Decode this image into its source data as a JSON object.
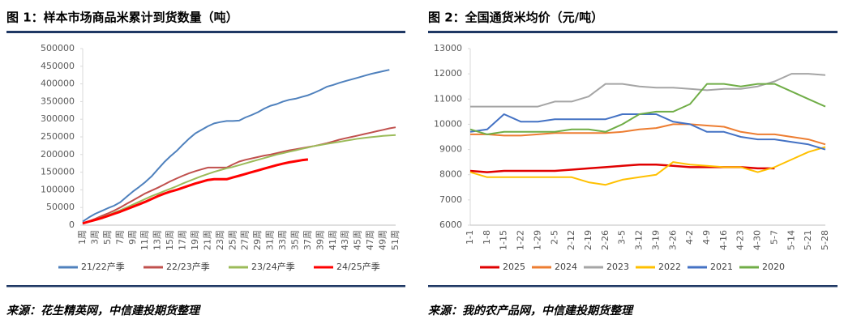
{
  "chart_data": [
    {
      "type": "line",
      "title": "图 1：样本市场商品米累计到货数量（吨）",
      "source": "来源：花生精英网，中信建投期货整理",
      "categories": [
        "1周",
        null,
        "3周",
        null,
        "5周",
        null,
        "7周",
        null,
        "9周",
        null,
        "11周",
        null,
        "13周",
        null,
        "15周",
        null,
        "17周",
        null,
        "19周",
        null,
        "21周",
        null,
        "23周",
        null,
        "25周",
        null,
        "27周",
        null,
        "29周",
        null,
        "31周",
        null,
        "33周",
        null,
        "35周",
        null,
        "37周",
        null,
        "39周",
        null,
        "41周",
        null,
        "43周",
        null,
        "45周",
        null,
        "47周",
        null,
        "49周",
        null,
        "51周"
      ],
      "ylim": [
        0,
        500000
      ],
      "yticks": [
        0,
        50000,
        100000,
        150000,
        200000,
        250000,
        300000,
        350000,
        400000,
        450000,
        500000
      ],
      "grid": false,
      "legend": "bottom",
      "series": [
        {
          "name": "21/22产季",
          "color": "#4f81bd",
          "values": [
            10000,
            22000,
            32000,
            40000,
            48000,
            55000,
            65000,
            80000,
            95000,
            108000,
            122000,
            138000,
            158000,
            178000,
            195000,
            210000,
            228000,
            245000,
            260000,
            270000,
            280000,
            288000,
            292000,
            295000,
            295000,
            296000,
            305000,
            312000,
            320000,
            330000,
            338000,
            343000,
            350000,
            355000,
            358000,
            363000,
            368000,
            375000,
            383000,
            392000,
            397000,
            403000,
            408000,
            413000,
            418000,
            423000,
            428000,
            432000,
            436000,
            440000,
            null
          ]
        },
        {
          "name": "22/23产季",
          "color": "#c0504d",
          "values": [
            5000,
            11000,
            18000,
            26000,
            33000,
            41000,
            50000,
            60000,
            70000,
            80000,
            90000,
            98000,
            106000,
            115000,
            124000,
            132000,
            140000,
            147000,
            153000,
            158000,
            163000,
            163000,
            163000,
            163000,
            172000,
            180000,
            185000,
            189000,
            193000,
            197000,
            200000,
            204000,
            208000,
            212000,
            215000,
            218000,
            221000,
            224000,
            228000,
            232000,
            237000,
            242000,
            246000,
            250000,
            254000,
            258000,
            262000,
            266000,
            270000,
            274000,
            277000
          ]
        },
        {
          "name": "23/24产季",
          "color": "#9bbb59",
          "values": [
            5000,
            10000,
            16000,
            22000,
            28000,
            35000,
            42000,
            50000,
            58000,
            66000,
            74000,
            82000,
            89000,
            96000,
            103000,
            110000,
            118000,
            125000,
            132000,
            139000,
            145000,
            151000,
            156000,
            161000,
            165000,
            170000,
            175000,
            180000,
            185000,
            190000,
            195000,
            200000,
            204000,
            208000,
            212000,
            216000,
            220000,
            224000,
            227000,
            230000,
            233000,
            236000,
            239000,
            242000,
            245000,
            247000,
            249000,
            251000,
            253000,
            254000,
            255000
          ]
        },
        {
          "name": "24/25产季",
          "color": "#ff0000",
          "width": 3,
          "values": [
            5000,
            10000,
            15000,
            20000,
            26000,
            32000,
            38000,
            45000,
            52000,
            59000,
            66000,
            74000,
            82000,
            89000,
            95000,
            100000,
            106000,
            112000,
            118000,
            123000,
            128000,
            130000,
            130000,
            130000,
            135000,
            140000,
            145000,
            150000,
            155000,
            160000,
            165000,
            170000,
            174000,
            178000,
            181000,
            184000,
            186000,
            null,
            null,
            null,
            null,
            null,
            null,
            null,
            null,
            null,
            null,
            null,
            null,
            null,
            null
          ]
        }
      ]
    },
    {
      "type": "line",
      "title": "图 2：全国通货米均价（元/吨）",
      "source": "来源：我的农产品网，中信建投期货整理",
      "categories": [
        "1-1",
        "1-8",
        "1-15",
        "1-22",
        "1-29",
        "2-5",
        "2-12",
        "2-19",
        "2-26",
        "3-5",
        "3-12",
        "3-19",
        "3-26",
        "4-2",
        "4-9",
        "4-16",
        "4-23",
        "4-30",
        "5-7",
        "5-14",
        "5-21",
        "5-28"
      ],
      "ylim": [
        6000,
        13000
      ],
      "yticks": [
        6000,
        7000,
        8000,
        9000,
        10000,
        11000,
        12000,
        13000
      ],
      "grid": false,
      "legend": "bottom",
      "series": [
        {
          "name": "2025",
          "color": "#e00000",
          "width": 2.5,
          "values": [
            8150,
            8100,
            8150,
            8150,
            8150,
            8150,
            8200,
            8250,
            8300,
            8350,
            8400,
            8400,
            8350,
            8300,
            8300,
            8300,
            8300,
            8250,
            8250,
            null,
            null,
            null
          ]
        },
        {
          "name": "2024",
          "color": "#ed7d31",
          "values": [
            9600,
            9600,
            9550,
            9550,
            9600,
            9650,
            9650,
            9650,
            9650,
            9700,
            9800,
            9850,
            10000,
            10000,
            9950,
            9900,
            9700,
            9600,
            9600,
            9500,
            9400,
            9200
          ]
        },
        {
          "name": "2023",
          "color": "#a5a5a5",
          "values": [
            10700,
            10700,
            10700,
            10700,
            10700,
            10900,
            10900,
            11100,
            11600,
            11600,
            11500,
            11450,
            11450,
            11400,
            11350,
            11400,
            11400,
            11500,
            11700,
            12000,
            12000,
            11950
          ]
        },
        {
          "name": "2022",
          "color": "#ffc000",
          "values": [
            8100,
            7900,
            7900,
            7900,
            7900,
            7900,
            7900,
            7700,
            7600,
            7800,
            7900,
            8000,
            8500,
            8400,
            8350,
            8300,
            8300,
            8100,
            8300,
            8600,
            8900,
            9100
          ]
        },
        {
          "name": "2021",
          "color": "#4472c4",
          "values": [
            9700,
            9800,
            10400,
            10100,
            10100,
            10200,
            10200,
            10200,
            10200,
            10400,
            10400,
            10400,
            10100,
            10000,
            9700,
            9700,
            9500,
            9400,
            9400,
            9300,
            9200,
            9000
          ]
        },
        {
          "name": "2020",
          "color": "#70ad47",
          "values": [
            9800,
            9600,
            9700,
            9700,
            9700,
            9700,
            9800,
            9800,
            9700,
            10000,
            10400,
            10500,
            10500,
            10800,
            11600,
            11600,
            11500,
            11600,
            11600,
            11300,
            11000,
            10700
          ]
        }
      ]
    }
  ]
}
